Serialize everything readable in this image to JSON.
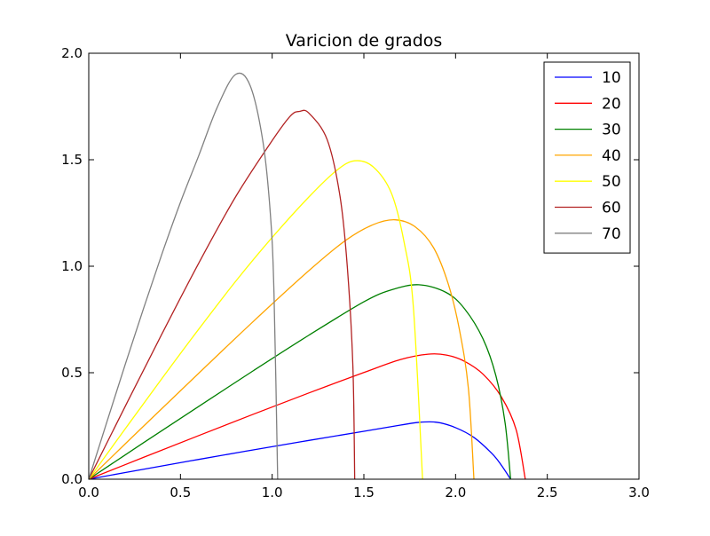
{
  "chart_data": {
    "type": "line",
    "title": "Varicion de grados",
    "xlabel": "",
    "ylabel": "",
    "xlim": [
      0.0,
      3.0
    ],
    "ylim": [
      0.0,
      2.0
    ],
    "xticks": [
      0.0,
      0.5,
      1.0,
      1.5,
      2.0,
      2.5,
      3.0
    ],
    "xtick_labels": [
      "0.0",
      "0.5",
      "1.0",
      "1.5",
      "2.0",
      "2.5",
      "3.0"
    ],
    "yticks": [
      0.0,
      0.5,
      1.0,
      1.5,
      2.0
    ],
    "ytick_labels": [
      "0.0",
      "0.5",
      "1.0",
      "1.5",
      "2.0"
    ],
    "grid": false,
    "legend_position": "top-right",
    "series": [
      {
        "name": "10",
        "color": "#0000ff",
        "x": [
          0.0,
          0.3,
          0.6,
          0.9,
          1.2,
          1.5,
          1.7,
          1.8,
          1.9,
          2.0,
          2.1,
          2.2,
          2.25,
          2.3
        ],
        "y": [
          0.0,
          0.047,
          0.093,
          0.138,
          0.182,
          0.225,
          0.254,
          0.267,
          0.267,
          0.242,
          0.196,
          0.119,
          0.065,
          0.0
        ]
      },
      {
        "name": "20",
        "color": "#ff0000",
        "x": [
          0.0,
          0.3,
          0.6,
          0.9,
          1.2,
          1.5,
          1.7,
          1.85,
          1.95,
          2.05,
          2.15,
          2.25,
          2.33,
          2.38
        ],
        "y": [
          0.0,
          0.103,
          0.205,
          0.306,
          0.405,
          0.501,
          0.562,
          0.587,
          0.583,
          0.553,
          0.493,
          0.386,
          0.233,
          0.0
        ]
      },
      {
        "name": "30",
        "color": "#008000",
        "x": [
          0.0,
          0.3,
          0.6,
          0.9,
          1.2,
          1.5,
          1.65,
          1.8,
          1.95,
          2.05,
          2.15,
          2.22,
          2.27,
          2.3
        ],
        "y": [
          0.0,
          0.172,
          0.342,
          0.511,
          0.676,
          0.833,
          0.889,
          0.913,
          0.876,
          0.799,
          0.658,
          0.485,
          0.264,
          0.0
        ]
      },
      {
        "name": "40",
        "color": "#ffa500",
        "x": [
          0.0,
          0.3,
          0.6,
          0.9,
          1.2,
          1.4,
          1.55,
          1.67,
          1.78,
          1.88,
          1.96,
          2.02,
          2.07,
          2.1
        ],
        "y": [
          0.0,
          0.25,
          0.498,
          0.743,
          0.979,
          1.121,
          1.195,
          1.218,
          1.185,
          1.087,
          0.917,
          0.706,
          0.425,
          0.0
        ]
      },
      {
        "name": "50",
        "color": "#ffff00",
        "x": [
          0.0,
          0.2,
          0.4,
          0.6,
          0.8,
          1.0,
          1.2,
          1.35,
          1.45,
          1.55,
          1.65,
          1.72,
          1.77,
          1.82
        ],
        "y": [
          0.0,
          0.238,
          0.474,
          0.705,
          0.928,
          1.135,
          1.325,
          1.449,
          1.495,
          1.467,
          1.343,
          1.11,
          0.806,
          0.0
        ]
      },
      {
        "name": "60",
        "color": "#b22222",
        "x": [
          0.0,
          0.2,
          0.4,
          0.6,
          0.8,
          1.0,
          1.1,
          1.15,
          1.2,
          1.3,
          1.37,
          1.41,
          1.44,
          1.45
        ],
        "y": [
          0.0,
          0.344,
          0.684,
          1.015,
          1.325,
          1.59,
          1.706,
          1.727,
          1.719,
          1.594,
          1.328,
          0.994,
          0.532,
          0.0
        ]
      },
      {
        "name": "70",
        "color": "#808080",
        "x": [
          0.0,
          0.1,
          0.2,
          0.3,
          0.4,
          0.5,
          0.6,
          0.7,
          0.8,
          0.88,
          0.95,
          0.99,
          1.01,
          1.03
        ],
        "y": [
          0.0,
          0.272,
          0.542,
          0.805,
          1.06,
          1.3,
          1.52,
          1.745,
          1.9,
          1.848,
          1.583,
          1.247,
          0.873,
          0.0
        ]
      }
    ]
  }
}
